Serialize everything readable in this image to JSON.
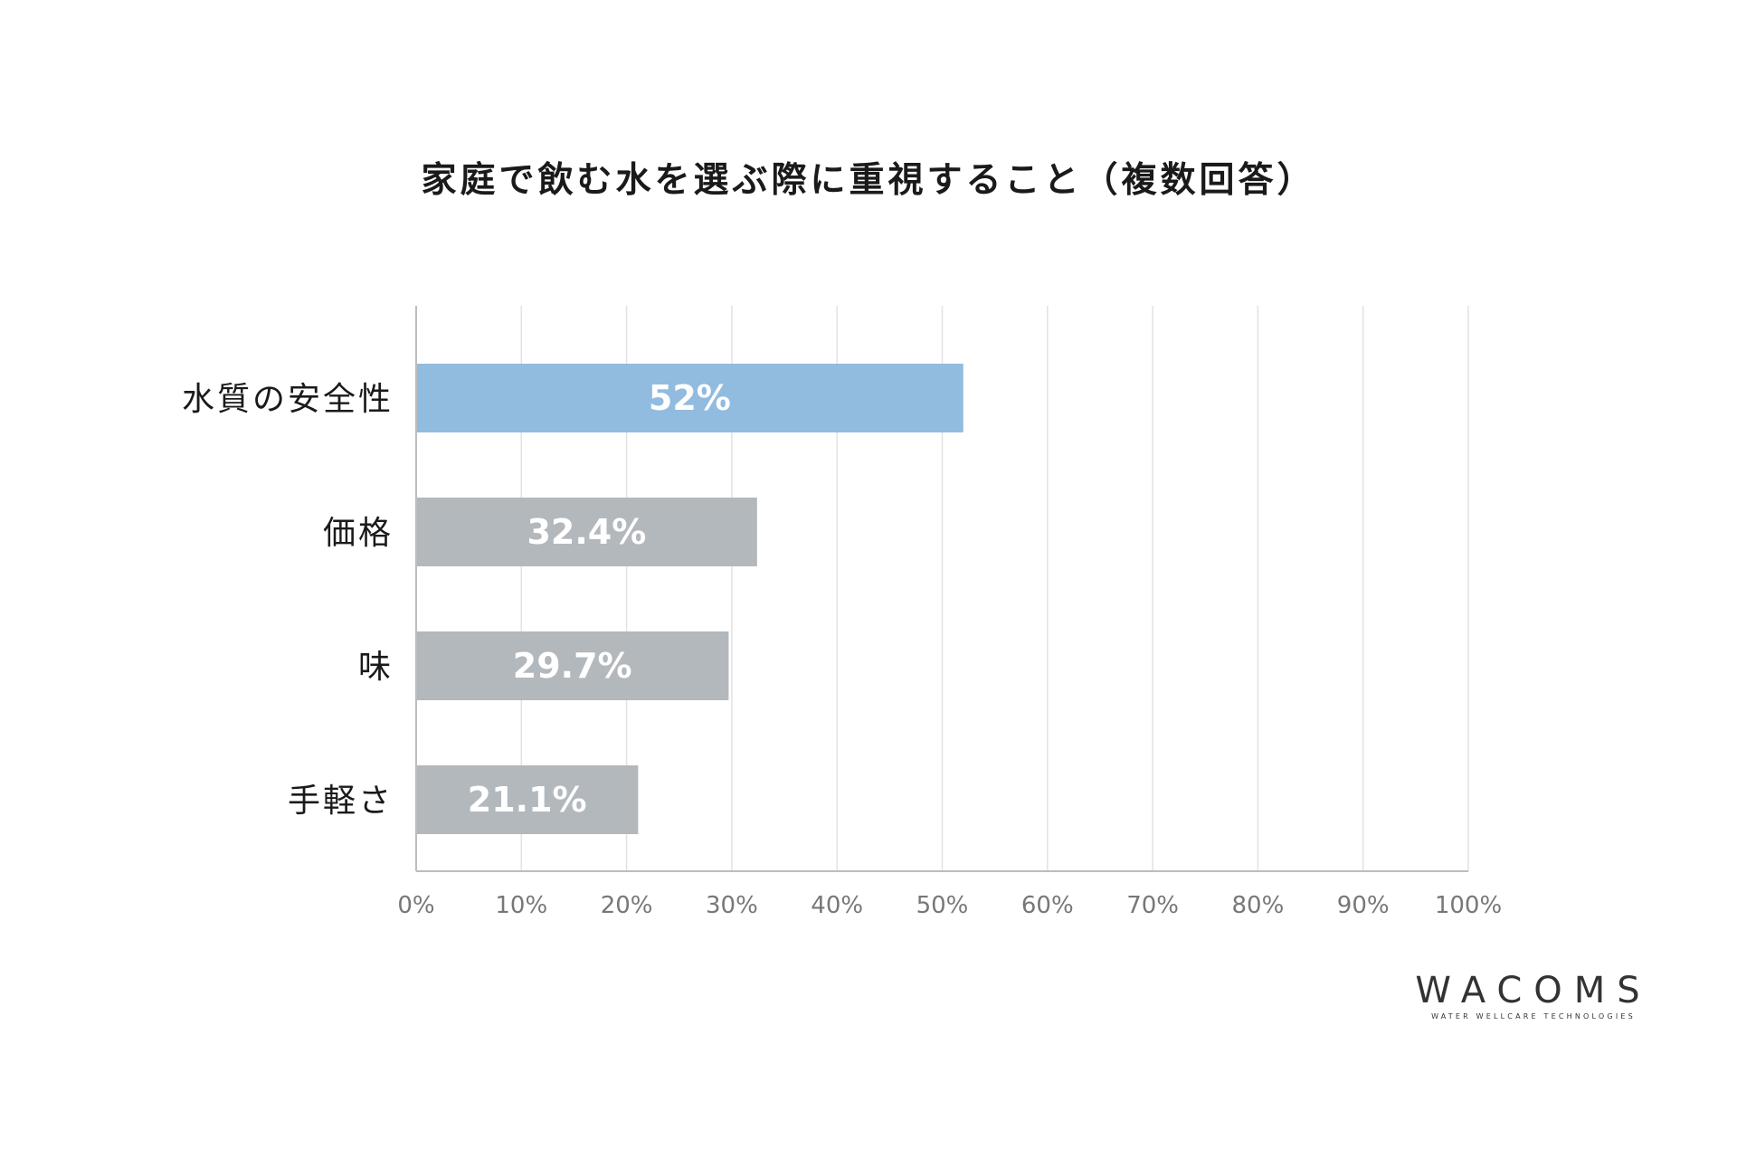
{
  "chart_data": {
    "type": "bar",
    "orientation": "horizontal",
    "title": "家庭で飲む水を選ぶ際に重視すること（複数回答）",
    "categories": [
      "水質の安全性",
      "価格",
      "味",
      "手軽さ"
    ],
    "values": [
      52,
      32.4,
      29.7,
      21.1
    ],
    "value_labels": [
      "52%",
      "32.4%",
      "29.7%",
      "21.1%"
    ],
    "xlim": [
      0,
      100
    ],
    "xticks": [
      "0%",
      "10%",
      "20%",
      "30%",
      "40%",
      "50%",
      "60%",
      "70%",
      "80%",
      "90%",
      "100%"
    ],
    "grid": true,
    "colors": {
      "highlight": "#92bbe0",
      "default": "#b3b8bd",
      "grid": "#e2e2e2",
      "axis": "#bdbdbd"
    },
    "highlight_index": 0
  },
  "logo": {
    "name": "WACOMS",
    "tagline": "WATER WELLCARE TECHNOLOGIES"
  }
}
